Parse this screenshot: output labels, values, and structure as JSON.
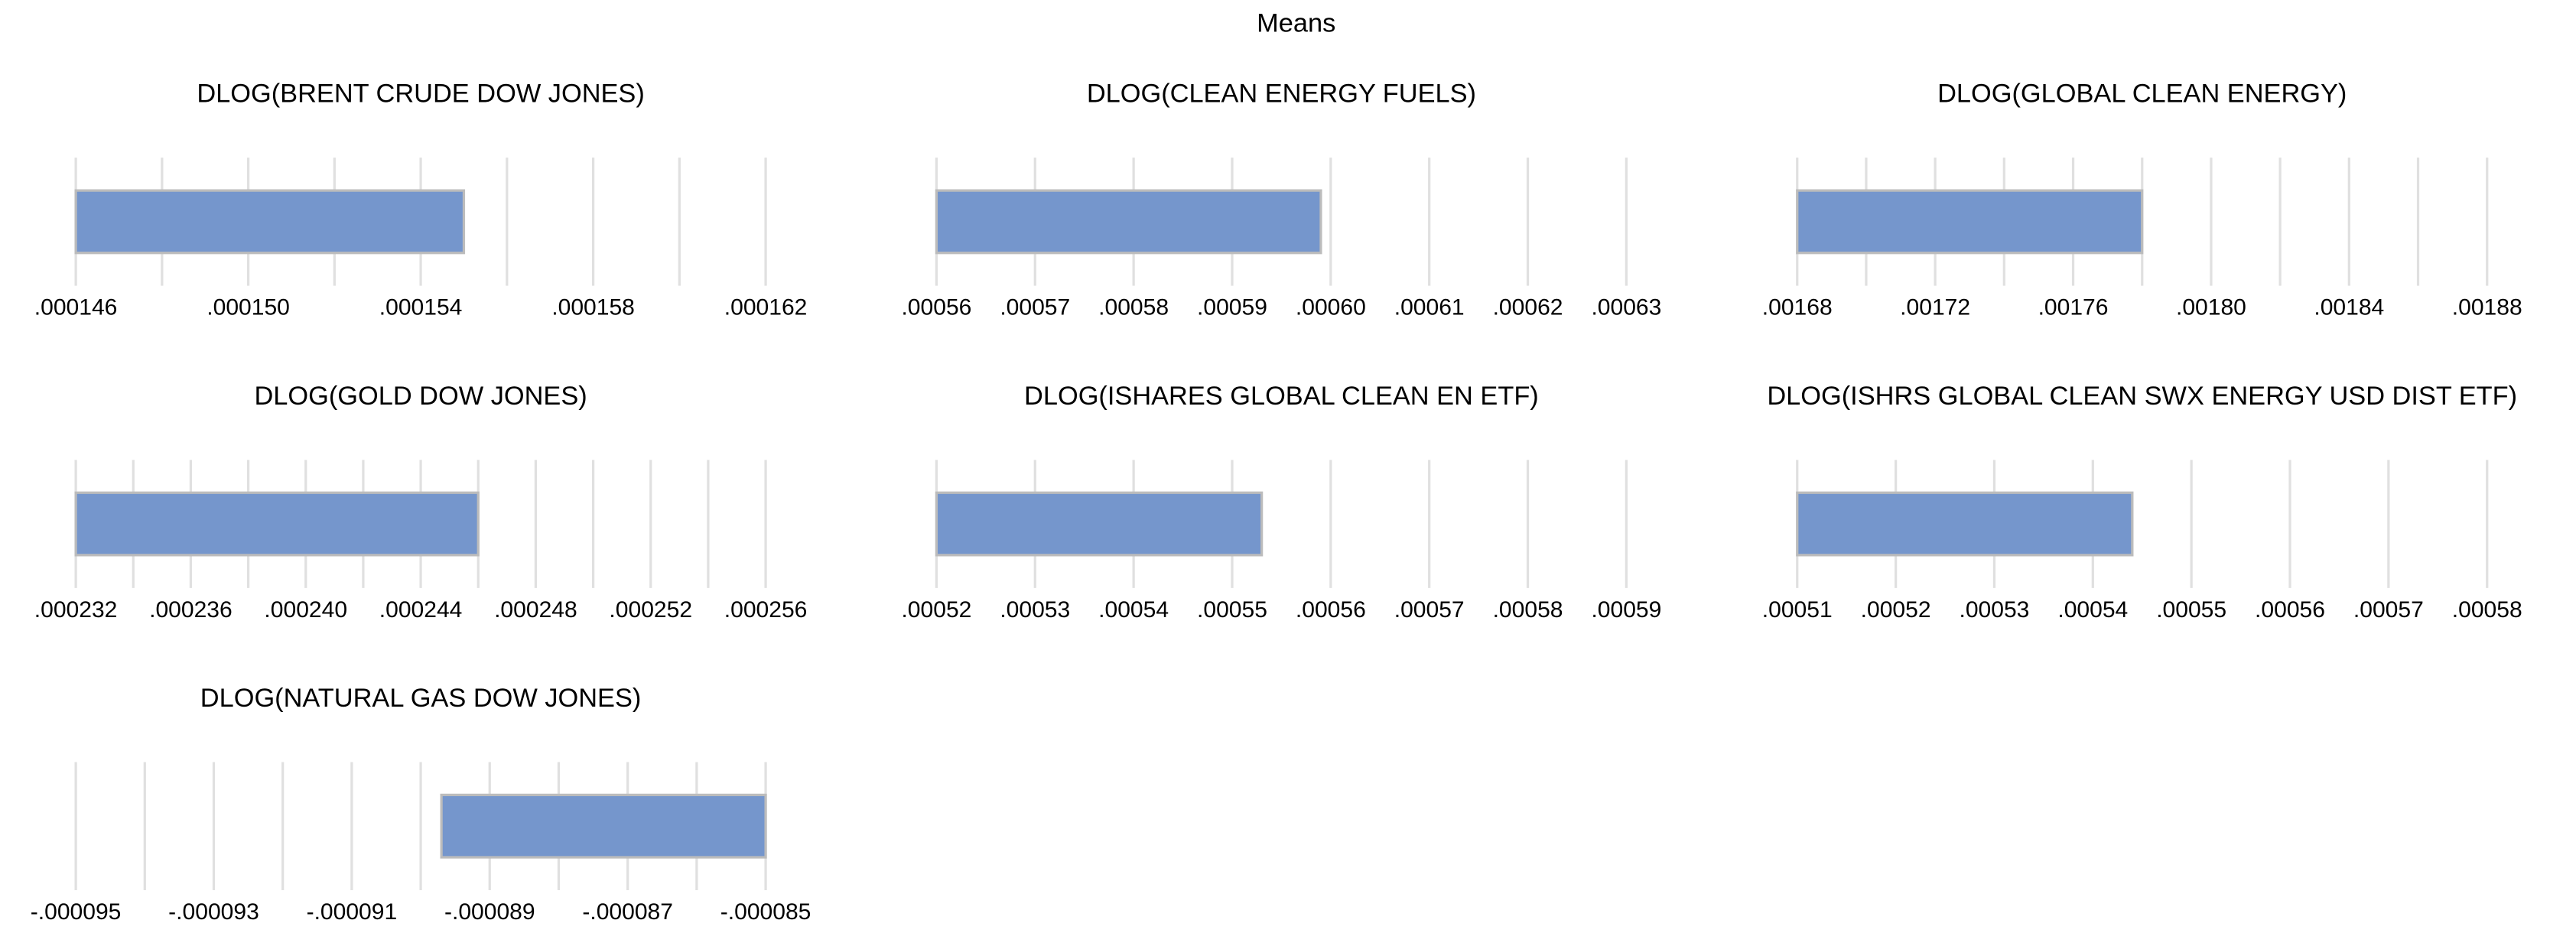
{
  "title": "Means",
  "chart_data": [
    {
      "type": "bar",
      "orientation": "horizontal",
      "title": "DLOG(BRENT CRUDE DOW JONES)",
      "values": [
        0.000155
      ],
      "color": "#7596cc",
      "xlim": [
        0.000146,
        0.000162
      ],
      "xticks": [
        {
          "value": 0.000146,
          "label": ".000146"
        },
        {
          "value": 0.00015,
          "label": ".000150"
        },
        {
          "value": 0.000154,
          "label": ".000154"
        },
        {
          "value": 0.000158,
          "label": ".000158"
        },
        {
          "value": 0.000162,
          "label": ".000162"
        }
      ],
      "minor_xticks": [
        0.000148,
        0.000152,
        0.000156,
        0.00016
      ],
      "grid": true
    },
    {
      "type": "bar",
      "orientation": "horizontal",
      "title": "DLOG(CLEAN ENERGY FUELS)",
      "values": [
        0.000599
      ],
      "color": "#7596cc",
      "xlim": [
        0.00056,
        0.00063
      ],
      "xticks": [
        {
          "value": 0.00056,
          "label": ".00056"
        },
        {
          "value": 0.00057,
          "label": ".00057"
        },
        {
          "value": 0.00058,
          "label": ".00058"
        },
        {
          "value": 0.00059,
          "label": ".00059"
        },
        {
          "value": 0.0006,
          "label": ".00060"
        },
        {
          "value": 0.00061,
          "label": ".00061"
        },
        {
          "value": 0.00062,
          "label": ".00062"
        },
        {
          "value": 0.00063,
          "label": ".00063"
        }
      ],
      "grid": true
    },
    {
      "type": "bar",
      "orientation": "horizontal",
      "title": "DLOG(GLOBAL CLEAN ENERGY)",
      "values": [
        0.00178
      ],
      "color": "#7596cc",
      "xlim": [
        0.00168,
        0.00188
      ],
      "xticks": [
        {
          "value": 0.00168,
          "label": ".00168"
        },
        {
          "value": 0.00172,
          "label": ".00172"
        },
        {
          "value": 0.00176,
          "label": ".00176"
        },
        {
          "value": 0.0018,
          "label": ".00180"
        },
        {
          "value": 0.00184,
          "label": ".00184"
        },
        {
          "value": 0.00188,
          "label": ".00188"
        }
      ],
      "minor_xticks": [
        0.0017,
        0.00174,
        0.00178,
        0.00182,
        0.00186
      ],
      "grid": true
    },
    {
      "type": "bar",
      "orientation": "horizontal",
      "title": "DLOG(GOLD DOW JONES)",
      "values": [
        0.000246
      ],
      "color": "#7596cc",
      "xlim": [
        0.000232,
        0.000256
      ],
      "xticks": [
        {
          "value": 0.000232,
          "label": ".000232"
        },
        {
          "value": 0.000236,
          "label": ".000236"
        },
        {
          "value": 0.00024,
          "label": ".000240"
        },
        {
          "value": 0.000244,
          "label": ".000244"
        },
        {
          "value": 0.000248,
          "label": ".000248"
        },
        {
          "value": 0.000252,
          "label": ".000252"
        },
        {
          "value": 0.000256,
          "label": ".000256"
        }
      ],
      "minor_xticks": [
        0.000234,
        0.000238,
        0.000242,
        0.000246,
        0.00025,
        0.000254
      ],
      "grid": true
    },
    {
      "type": "bar",
      "orientation": "horizontal",
      "title": "DLOG(ISHARES GLOBAL CLEAN EN ETF)",
      "values": [
        0.000553
      ],
      "color": "#7596cc",
      "xlim": [
        0.00052,
        0.00059
      ],
      "xticks": [
        {
          "value": 0.00052,
          "label": ".00052"
        },
        {
          "value": 0.00053,
          "label": ".00053"
        },
        {
          "value": 0.00054,
          "label": ".00054"
        },
        {
          "value": 0.00055,
          "label": ".00055"
        },
        {
          "value": 0.00056,
          "label": ".00056"
        },
        {
          "value": 0.00057,
          "label": ".00057"
        },
        {
          "value": 0.00058,
          "label": ".00058"
        },
        {
          "value": 0.00059,
          "label": ".00059"
        }
      ],
      "grid": true
    },
    {
      "type": "bar",
      "orientation": "horizontal",
      "title": "DLOG(ISHRS GLOBAL CLEAN SWX ENERGY USD DIST ETF)",
      "values": [
        0.000544
      ],
      "color": "#7596cc",
      "xlim": [
        0.00051,
        0.00058
      ],
      "xticks": [
        {
          "value": 0.00051,
          "label": ".00051"
        },
        {
          "value": 0.00052,
          "label": ".00052"
        },
        {
          "value": 0.00053,
          "label": ".00053"
        },
        {
          "value": 0.00054,
          "label": ".00054"
        },
        {
          "value": 0.00055,
          "label": ".00055"
        },
        {
          "value": 0.00056,
          "label": ".00056"
        },
        {
          "value": 0.00057,
          "label": ".00057"
        },
        {
          "value": 0.00058,
          "label": ".00058"
        }
      ],
      "grid": true
    },
    {
      "type": "bar",
      "orientation": "horizontal",
      "title": "DLOG(NATURAL GAS DOW JONES)",
      "values": [
        -8.97e-05
      ],
      "color": "#7596cc",
      "xlim": [
        -9.5e-05,
        -8.5e-05
      ],
      "xticks": [
        {
          "value": -9.5e-05,
          "label": "-.000095"
        },
        {
          "value": -9.3e-05,
          "label": "-.000093"
        },
        {
          "value": -9.1e-05,
          "label": "-.000091"
        },
        {
          "value": -8.9e-05,
          "label": "-.000089"
        },
        {
          "value": -8.7e-05,
          "label": "-.000087"
        },
        {
          "value": -8.5e-05,
          "label": "-.000085"
        }
      ],
      "minor_xticks": [
        -9.4e-05,
        -9.2e-05,
        -9e-05,
        -8.8e-05,
        -8.6e-05
      ],
      "grid": true
    }
  ]
}
